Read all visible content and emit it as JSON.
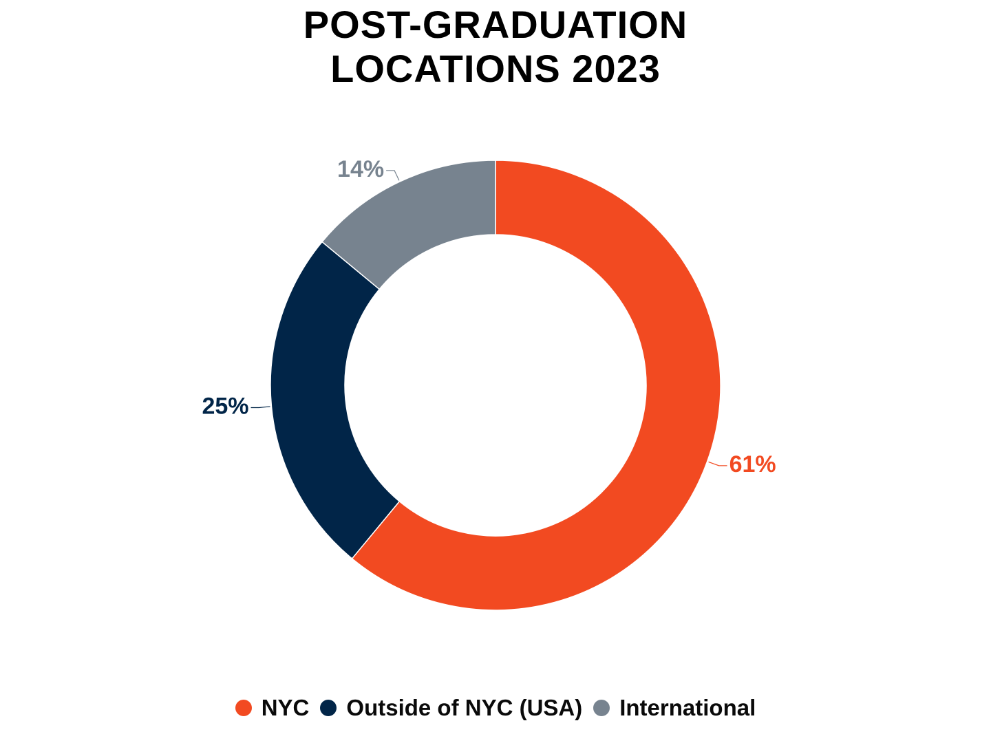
{
  "chart_data": {
    "type": "pie",
    "subtype": "donut",
    "title_lines": [
      "POST-GRADUATION",
      "LOCATIONS 2023"
    ],
    "categories": [
      "NYC",
      "Outside of NYC (USA)",
      "International"
    ],
    "values": [
      61,
      25,
      14
    ],
    "labels": [
      "61%",
      "25%",
      "14%"
    ],
    "colors": [
      "#F24A21",
      "#012548",
      "#77838F"
    ],
    "start": "top, clockwise",
    "legend_position": "bottom"
  }
}
